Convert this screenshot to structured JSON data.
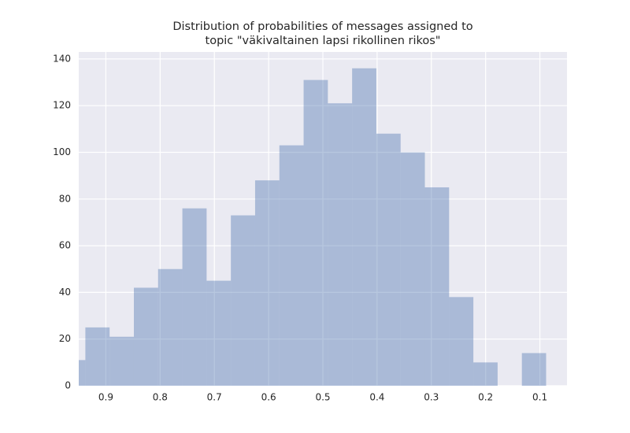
{
  "chart_data": {
    "type": "histogram",
    "title": "Distribution of probabilities of messages assigned to\ntopic \"väkivaltainen lapsi rikollinen rikos\"",
    "bins": [
      0.0885,
      0.1332,
      0.1779,
      0.2226,
      0.2673,
      0.312,
      0.3567,
      0.4014,
      0.4461,
      0.4908,
      0.5355,
      0.5802,
      0.6249,
      0.6696,
      0.7143,
      0.759,
      0.8037,
      0.8484,
      0.8931,
      0.9378,
      0.9825
    ],
    "values": [
      14,
      0,
      10,
      38,
      85,
      100,
      108,
      136,
      121,
      131,
      103,
      88,
      73,
      45,
      76,
      50,
      42,
      21,
      25,
      11
    ],
    "color": "#4c72b0",
    "opacity": 0.4,
    "xlim": [
      0.95,
      0.05
    ],
    "xticks": [
      0.9,
      0.8,
      0.7,
      0.6,
      0.5,
      0.4,
      0.3,
      0.2,
      0.1
    ],
    "ylim": [
      0,
      143
    ],
    "yticks": [
      0,
      20,
      40,
      60,
      80,
      100,
      120,
      140
    ],
    "grid": true
  }
}
